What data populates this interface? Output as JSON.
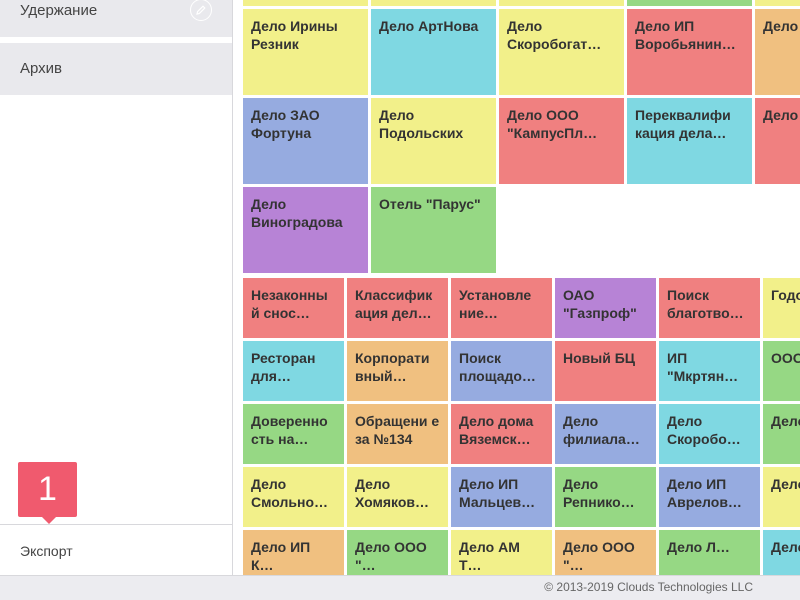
{
  "colors": {
    "yellow": "#f2f08a",
    "cyan": "#7fd8e2",
    "red": "#f08080",
    "orange": "#f0c080",
    "blue": "#96abe0",
    "purple": "#b783d6",
    "green": "#96d884"
  },
  "sidebar": {
    "items": [
      {
        "label": "Удержание"
      },
      {
        "label": "Архив"
      }
    ],
    "badge_count": "1",
    "export_label": "Экспорт"
  },
  "groups": [
    {
      "tiles": [
        {
          "text": "",
          "color": "yellow"
        },
        {
          "text": "",
          "color": "yellow"
        },
        {
          "text": "",
          "color": "yellow"
        },
        {
          "text": "",
          "color": "green"
        },
        {
          "text": "",
          "color": "yellow"
        },
        {
          "text": "Дело Ирины Резник",
          "color": "yellow"
        },
        {
          "text": "Дело АртНова",
          "color": "cyan"
        },
        {
          "text": "Дело Скоробогат…",
          "color": "yellow"
        },
        {
          "text": "Дело ИП Воробьянин…",
          "color": "red"
        },
        {
          "text": "Дело Мира…",
          "color": "orange"
        },
        {
          "text": "Дело ЗАО Фортуна",
          "color": "blue"
        },
        {
          "text": "Дело Подольских",
          "color": "yellow"
        },
        {
          "text": "Дело ООО \"КампусПл…",
          "color": "red"
        },
        {
          "text": "Переквалифи кация дела…",
          "color": "cyan"
        },
        {
          "text": "Дело Буже…",
          "color": "red"
        },
        {
          "text": "Дело Виноградова",
          "color": "purple"
        },
        {
          "text": "Отель \"Парус\"",
          "color": "green"
        }
      ]
    },
    {
      "tiles": [
        {
          "text": "Незаконны й снос…",
          "color": "red"
        },
        {
          "text": "Классифик ация дел…",
          "color": "red"
        },
        {
          "text": "Установле ние…",
          "color": "red"
        },
        {
          "text": "ОАО \"Газпроф\"",
          "color": "purple"
        },
        {
          "text": "Поиск благотво…",
          "color": "red"
        },
        {
          "text": "Годо итог…",
          "color": "yellow"
        },
        {
          "text": "Ресторан для…",
          "color": "cyan"
        },
        {
          "text": "Корпорати вный…",
          "color": "orange"
        },
        {
          "text": "Поиск площадо…",
          "color": "blue"
        },
        {
          "text": "Новый БЦ",
          "color": "red"
        },
        {
          "text": "ИП \"Мкртян…",
          "color": "cyan"
        },
        {
          "text": "ООО \"Ирб…",
          "color": "green"
        },
        {
          "text": "Доверенно сть на…",
          "color": "green"
        },
        {
          "text": "Обращени е за №134",
          "color": "orange"
        },
        {
          "text": "Дело дома Вяземск…",
          "color": "red"
        },
        {
          "text": "Дело филиала…",
          "color": "blue"
        },
        {
          "text": "Дело Скоробо…",
          "color": "cyan"
        },
        {
          "text": "Дело Кам…",
          "color": "green"
        },
        {
          "text": "Дело Смольно…",
          "color": "yellow"
        },
        {
          "text": "Дело Хомяков…",
          "color": "yellow"
        },
        {
          "text": "Дело ИП Мальцев…",
          "color": "blue"
        },
        {
          "text": "Дело Репнико…",
          "color": "green"
        },
        {
          "text": "Дело ИП Аврелов…",
          "color": "blue"
        },
        {
          "text": "Дело Ива…",
          "color": "yellow"
        },
        {
          "text": "Дело ИП К…",
          "color": "orange"
        },
        {
          "text": "Дело ООО \"…",
          "color": "green"
        },
        {
          "text": "Дело АМ Т…",
          "color": "yellow"
        },
        {
          "text": "Дело ООО \"…",
          "color": "orange"
        },
        {
          "text": "Дело Л…",
          "color": "green"
        },
        {
          "text": "Дело …",
          "color": "cyan"
        }
      ]
    }
  ],
  "footer": {
    "copyright": "© 2013-2019 Clouds Technologies LLC"
  }
}
